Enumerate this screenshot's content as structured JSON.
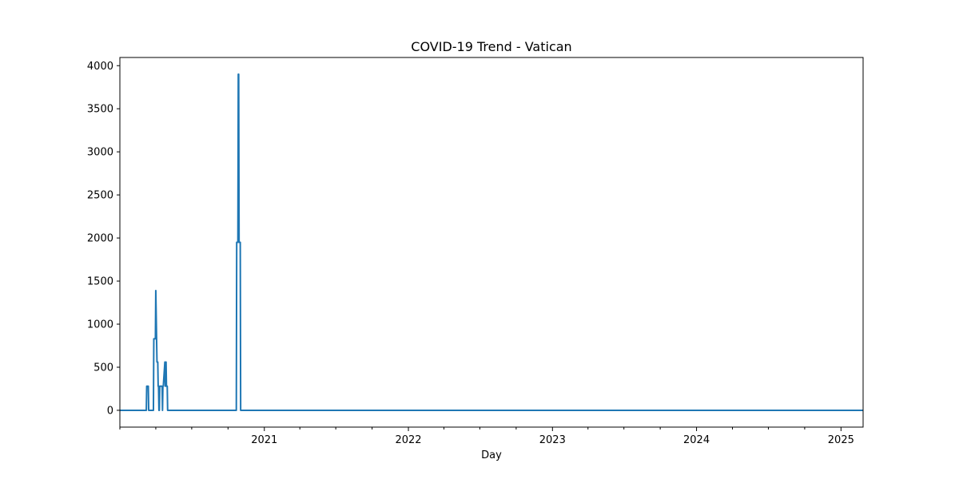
{
  "chart_data": {
    "type": "line",
    "title": "COVID-19 Trend - Vatican",
    "xlabel": "Day",
    "ylabel": "",
    "x_range": [
      "2020-01-01",
      "2025-02-26"
    ],
    "ylim": [
      -195,
      4095
    ],
    "grid": false,
    "legend": "none",
    "line_color": "#1f77b4",
    "y_ticks": [
      0,
      500,
      1000,
      1500,
      2000,
      2500,
      3000,
      3500,
      4000
    ],
    "x_ticks": [
      {
        "date": "2021-01-01",
        "label": "2021"
      },
      {
        "date": "2022-01-01",
        "label": "2022"
      },
      {
        "date": "2023-01-01",
        "label": "2023"
      },
      {
        "date": "2024-01-01",
        "label": "2024"
      },
      {
        "date": "2025-01-01",
        "label": "2025"
      }
    ],
    "x_minor_ticks": [
      "2020-01-01",
      "2020-04-01",
      "2020-07-01",
      "2020-10-01",
      "2021-04-01",
      "2021-07-01",
      "2021-10-01",
      "2022-04-01",
      "2022-07-01",
      "2022-10-01",
      "2023-04-01",
      "2023-07-01",
      "2023-10-01",
      "2024-04-01",
      "2024-07-01",
      "2024-10-01"
    ],
    "series": [
      {
        "x": [
          "2020-01-01",
          "2020-03-08",
          "2020-03-09",
          "2020-03-13",
          "2020-03-14",
          "2020-03-26",
          "2020-03-27",
          "2020-03-31",
          "2020-04-01",
          "2020-04-03",
          "2020-04-04",
          "2020-04-06",
          "2020-04-07",
          "2020-04-08",
          "2020-04-09",
          "2020-04-10",
          "2020-04-11",
          "2020-04-17",
          "2020-04-18",
          "2020-04-19",
          "2020-04-20",
          "2020-04-24",
          "2020-04-25",
          "2020-04-27",
          "2020-04-28",
          "2020-04-30",
          "2020-05-01",
          "2020-05-03",
          "2020-05-04",
          "2020-05-11",
          "2020-05-12",
          "2020-10-22",
          "2020-10-23",
          "2020-10-26",
          "2020-10-27",
          "2020-10-28",
          "2020-10-29",
          "2020-11-01",
          "2020-11-02",
          "2025-02-26"
        ],
        "y": [
          0,
          0,
          280,
          280,
          0,
          0,
          830,
          830,
          1390,
          830,
          560,
          560,
          280,
          280,
          0,
          0,
          280,
          280,
          0,
          280,
          280,
          560,
          280,
          560,
          280,
          280,
          0,
          0,
          0,
          0,
          0,
          0,
          1950,
          1950,
          3900,
          3900,
          1950,
          1950,
          0,
          0
        ]
      }
    ]
  }
}
